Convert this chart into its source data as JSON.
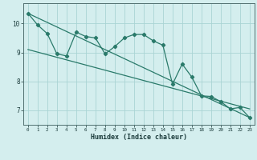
{
  "xlabel": "Humidex (Indice chaleur)",
  "bg_color": "#d4eeee",
  "grid_color": "#aad4d4",
  "line_color": "#2a7a6a",
  "x_values": [
    0,
    1,
    2,
    3,
    4,
    5,
    6,
    7,
    8,
    9,
    10,
    11,
    12,
    13,
    14,
    15,
    16,
    17,
    18,
    19,
    20,
    21,
    22,
    23
  ],
  "series1": [
    10.35,
    9.95,
    9.65,
    8.95,
    8.88,
    9.7,
    9.55,
    9.5,
    8.95,
    9.2,
    9.5,
    9.62,
    9.62,
    9.4,
    9.25,
    7.9,
    8.6,
    8.15,
    7.5,
    7.48,
    7.3,
    7.05,
    7.1,
    6.75
  ],
  "series2_x": [
    0,
    23
  ],
  "series2_y": [
    10.35,
    6.75
  ],
  "series3_x": [
    0,
    23
  ],
  "series3_y": [
    9.1,
    7.05
  ],
  "ylim": [
    6.5,
    10.7
  ],
  "xlim": [
    -0.5,
    23.5
  ]
}
